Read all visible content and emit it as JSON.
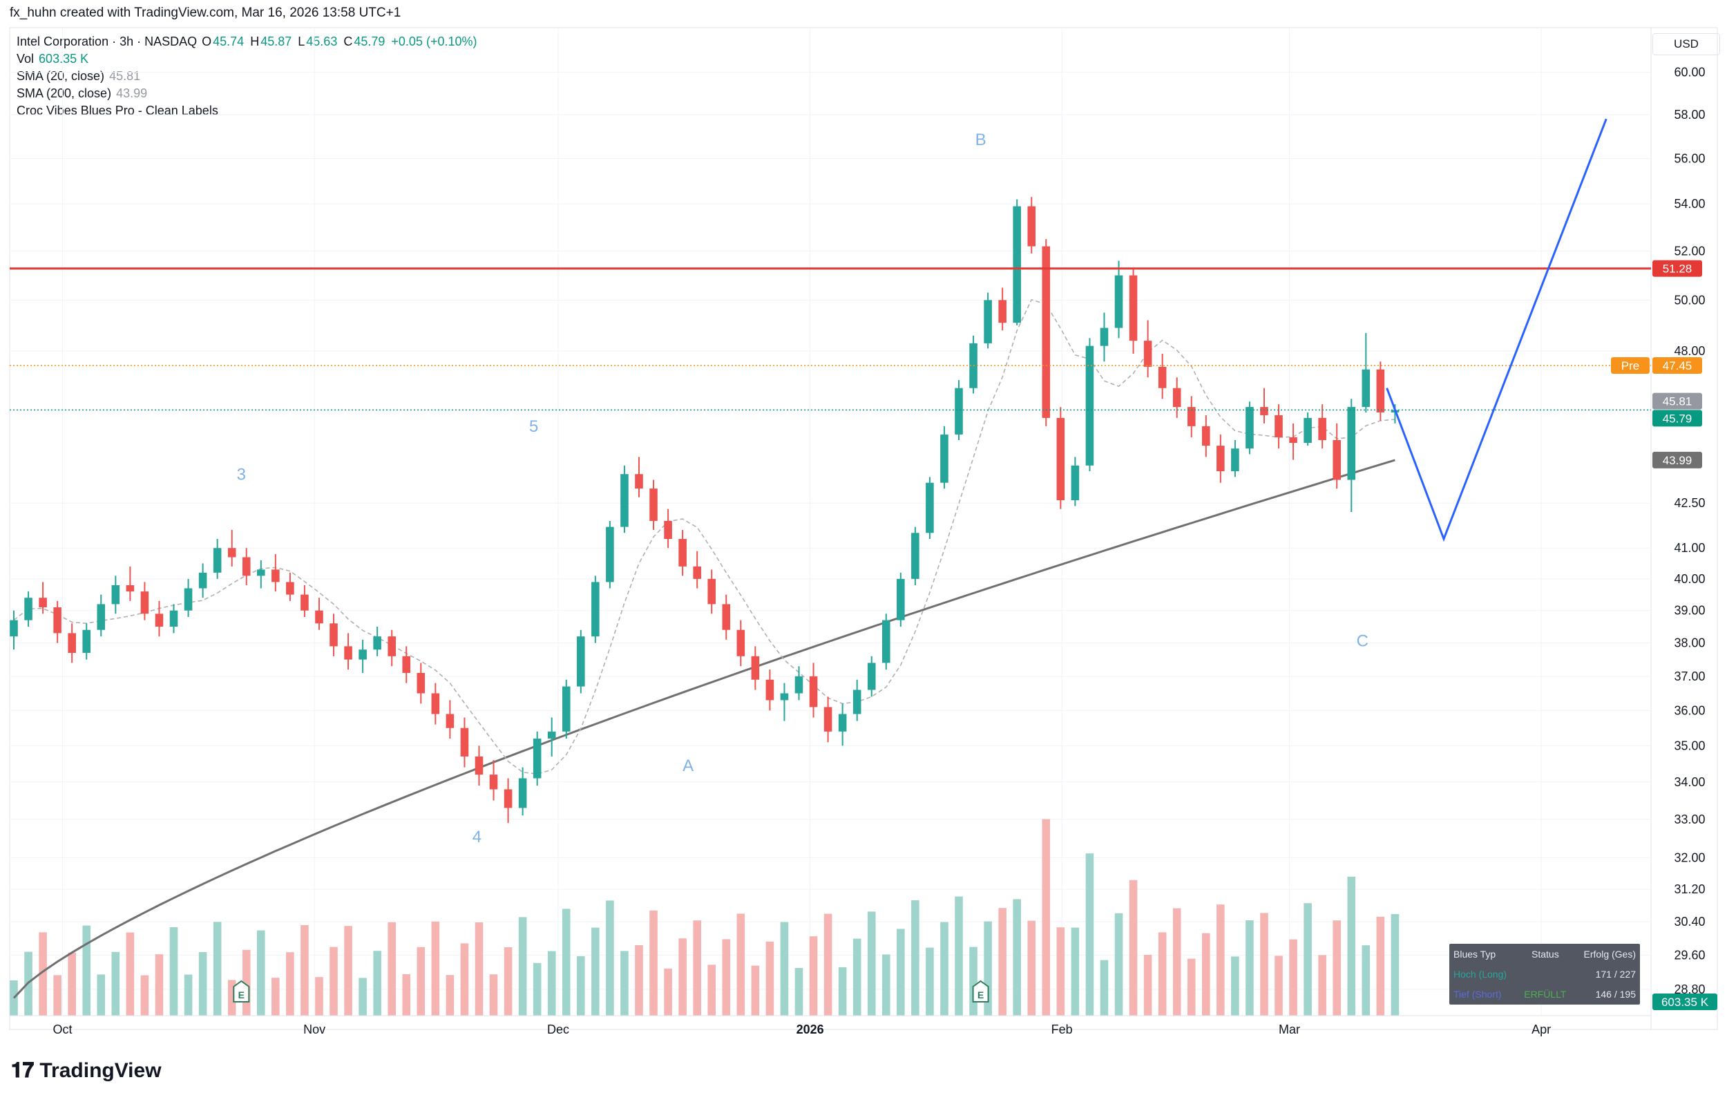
{
  "header": {
    "caption": "fx_huhn created with TradingView.com, Mar 16, 2026 13:58 UTC+1"
  },
  "legend": {
    "symbol": "Intel Corporation · 3h · NASDAQ",
    "ohlc": [
      {
        "k": "O",
        "v": "45.74"
      },
      {
        "k": "H",
        "v": "45.87"
      },
      {
        "k": "L",
        "v": "45.63"
      },
      {
        "k": "C",
        "v": "45.79"
      }
    ],
    "change": "+0.05 (+0.10%)",
    "vol_label": "Vol",
    "vol_value": "603.35 K",
    "sma20_label": "SMA (20, close)",
    "sma20_value": "45.81",
    "sma200_label": "SMA (200, close)",
    "sma200_value": "43.99",
    "indicator": "Croc Vibes Blues Pro - Clean Labels"
  },
  "currency": "USD",
  "colors": {
    "up": "#26a69a",
    "down": "#ef5350",
    "resistance": "#e53935",
    "pre": "#f7931a",
    "sma200": "#707070",
    "sma20": "#b0b0b0",
    "projection": "#2962ff",
    "wave_label": "#7fb2e5"
  },
  "chart_data": {
    "type": "candlestick",
    "title": "Intel Corporation · 3h · NASDAQ",
    "y_axis": {
      "ticks": [
        "60.00",
        "58.00",
        "56.00",
        "54.00",
        "52.00",
        "50.00",
        "48.00",
        "45.81",
        "45.79",
        "43.99",
        "42.50",
        "41.00",
        "40.00",
        "39.00",
        "38.00",
        "37.00",
        "36.00",
        "35.00",
        "34.00",
        "33.00",
        "32.00",
        "31.20",
        "30.40",
        "29.60",
        "28.80"
      ],
      "scale": "log",
      "range": [
        28.2,
        61.5
      ]
    },
    "x_axis": {
      "ticks": [
        "Oct",
        "Nov",
        "Dec",
        "2026",
        "Feb",
        "Mar",
        "Apr"
      ]
    },
    "price_tags": [
      {
        "label": "",
        "value": "51.28",
        "color": "#e53935"
      },
      {
        "label": "Pre",
        "value": "47.45",
        "color": "#f7931a"
      },
      {
        "label": "",
        "value": "45.81",
        "color": "#9598a1"
      },
      {
        "label": "",
        "value": "45.79",
        "color": "#089981"
      },
      {
        "label": "",
        "value": "43.99",
        "color": "#707070"
      }
    ],
    "volume_tag": "603.35 K",
    "resistance_level": 51.28,
    "pre_market_level": 47.45,
    "last_close": 45.79,
    "sma20_last": 45.81,
    "sma200_last": 43.99,
    "wave_labels": [
      {
        "text": "3",
        "time": "2025-10-23",
        "price": 43.3
      },
      {
        "text": "4",
        "time": "2025-11-21",
        "price": 32.4
      },
      {
        "text": "5",
        "time": "2025-11-28",
        "price": 45.0
      },
      {
        "text": "A",
        "time": "2025-12-17",
        "price": 34.3
      },
      {
        "text": "B",
        "time": "2026-01-22",
        "price": 56.6
      },
      {
        "text": "C",
        "time": "2026-03-10",
        "price": 37.9
      }
    ],
    "projection": [
      {
        "time": "2026-03-13",
        "price": 46.6
      },
      {
        "time": "2026-03-20",
        "price": 41.3
      },
      {
        "time": "2026-04-09",
        "price": 57.8
      }
    ],
    "earnings_markers": [
      "2025-10-23",
      "2026-01-22"
    ],
    "stats": {
      "headers": [
        "Blues Typ",
        "Status",
        "Erfolg (Ges)"
      ],
      "rows": [
        {
          "typ": "Hoch (Long)",
          "status": "",
          "erfolg": "171 / 227"
        },
        {
          "typ": "Tief (Short)",
          "status": "ERFÜLLT",
          "erfolg": "146 / 195"
        }
      ]
    },
    "candles": [
      [
        38.2,
        39.0,
        37.8,
        38.7
      ],
      [
        38.7,
        39.6,
        38.5,
        39.4
      ],
      [
        39.4,
        39.9,
        38.9,
        39.1
      ],
      [
        39.1,
        39.3,
        38.0,
        38.3
      ],
      [
        38.3,
        38.6,
        37.4,
        37.7
      ],
      [
        37.7,
        38.6,
        37.5,
        38.4
      ],
      [
        38.4,
        39.5,
        38.2,
        39.2
      ],
      [
        39.2,
        40.1,
        38.9,
        39.8
      ],
      [
        39.8,
        40.4,
        39.3,
        39.6
      ],
      [
        39.6,
        39.9,
        38.7,
        38.9
      ],
      [
        38.9,
        39.3,
        38.2,
        38.5
      ],
      [
        38.5,
        39.2,
        38.3,
        39.0
      ],
      [
        39.0,
        40.0,
        38.8,
        39.7
      ],
      [
        39.7,
        40.5,
        39.4,
        40.2
      ],
      [
        40.2,
        41.3,
        40.0,
        41.0
      ],
      [
        41.0,
        41.6,
        40.4,
        40.7
      ],
      [
        40.7,
        41.0,
        39.8,
        40.1
      ],
      [
        40.1,
        40.6,
        39.7,
        40.3
      ],
      [
        40.3,
        40.8,
        39.6,
        39.9
      ],
      [
        39.9,
        40.2,
        39.3,
        39.5
      ],
      [
        39.5,
        39.8,
        38.8,
        39.0
      ],
      [
        39.0,
        39.4,
        38.4,
        38.6
      ],
      [
        38.6,
        38.9,
        37.6,
        37.9
      ],
      [
        37.9,
        38.3,
        37.2,
        37.5
      ],
      [
        37.5,
        38.1,
        37.1,
        37.8
      ],
      [
        37.8,
        38.5,
        37.6,
        38.2
      ],
      [
        38.2,
        38.4,
        37.3,
        37.6
      ],
      [
        37.6,
        37.9,
        36.8,
        37.1
      ],
      [
        37.1,
        37.4,
        36.2,
        36.5
      ],
      [
        36.5,
        36.8,
        35.6,
        35.9
      ],
      [
        35.9,
        36.3,
        35.2,
        35.5
      ],
      [
        35.5,
        35.8,
        34.4,
        34.7
      ],
      [
        34.7,
        35.0,
        33.9,
        34.2
      ],
      [
        34.2,
        34.6,
        33.5,
        33.8
      ],
      [
        33.8,
        34.1,
        32.9,
        33.3
      ],
      [
        33.3,
        34.4,
        33.1,
        34.1
      ],
      [
        34.1,
        35.4,
        33.9,
        35.2
      ],
      [
        35.2,
        35.8,
        34.7,
        35.4
      ],
      [
        35.4,
        36.9,
        35.2,
        36.7
      ],
      [
        36.7,
        38.4,
        36.5,
        38.2
      ],
      [
        38.2,
        40.1,
        38.0,
        39.9
      ],
      [
        39.9,
        41.9,
        39.7,
        41.7
      ],
      [
        41.7,
        43.8,
        41.5,
        43.5
      ],
      [
        43.5,
        44.1,
        42.7,
        43.0
      ],
      [
        43.0,
        43.3,
        41.6,
        41.9
      ],
      [
        41.9,
        42.3,
        41.0,
        41.3
      ],
      [
        41.3,
        41.6,
        40.1,
        40.4
      ],
      [
        40.4,
        40.9,
        39.7,
        40.0
      ],
      [
        40.0,
        40.3,
        38.9,
        39.2
      ],
      [
        39.2,
        39.5,
        38.1,
        38.4
      ],
      [
        38.4,
        38.7,
        37.3,
        37.6
      ],
      [
        37.6,
        37.9,
        36.6,
        36.9
      ],
      [
        36.9,
        37.2,
        36.0,
        36.3
      ],
      [
        36.3,
        36.8,
        35.7,
        36.5
      ],
      [
        36.5,
        37.3,
        36.3,
        37.0
      ],
      [
        37.0,
        37.4,
        35.8,
        36.1
      ],
      [
        36.1,
        36.4,
        35.1,
        35.4
      ],
      [
        35.4,
        36.2,
        35.0,
        35.9
      ],
      [
        35.9,
        36.9,
        35.7,
        36.6
      ],
      [
        36.6,
        37.6,
        36.4,
        37.4
      ],
      [
        37.4,
        38.9,
        37.2,
        38.7
      ],
      [
        38.7,
        40.2,
        38.5,
        40.0
      ],
      [
        40.0,
        41.7,
        39.8,
        41.5
      ],
      [
        41.5,
        43.4,
        41.3,
        43.2
      ],
      [
        43.2,
        45.2,
        43.0,
        44.9
      ],
      [
        44.9,
        46.9,
        44.7,
        46.6
      ],
      [
        46.6,
        48.6,
        46.4,
        48.3
      ],
      [
        48.3,
        50.3,
        48.1,
        50.0
      ],
      [
        50.0,
        50.5,
        48.8,
        49.1
      ],
      [
        49.1,
        54.2,
        49.0,
        53.9
      ],
      [
        53.9,
        54.3,
        51.9,
        52.2
      ],
      [
        52.2,
        52.5,
        45.2,
        45.5
      ],
      [
        45.5,
        45.9,
        42.3,
        42.6
      ],
      [
        42.6,
        44.1,
        42.4,
        43.8
      ],
      [
        43.8,
        48.5,
        43.6,
        48.2
      ],
      [
        48.2,
        49.5,
        47.6,
        48.9
      ],
      [
        48.9,
        51.6,
        48.5,
        51.0
      ],
      [
        51.0,
        51.3,
        47.9,
        48.4
      ],
      [
        48.4,
        49.2,
        47.0,
        47.4
      ],
      [
        47.4,
        47.9,
        46.2,
        46.6
      ],
      [
        46.6,
        47.0,
        45.5,
        45.9
      ],
      [
        45.9,
        46.3,
        44.8,
        45.2
      ],
      [
        45.2,
        45.6,
        44.1,
        44.5
      ],
      [
        44.5,
        44.9,
        43.2,
        43.6
      ],
      [
        43.6,
        44.7,
        43.4,
        44.4
      ],
      [
        44.4,
        46.1,
        44.2,
        45.9
      ],
      [
        45.9,
        46.6,
        45.3,
        45.6
      ],
      [
        45.6,
        46.0,
        44.4,
        44.8
      ],
      [
        44.8,
        45.3,
        44.0,
        44.6
      ],
      [
        44.6,
        45.7,
        44.5,
        45.5
      ],
      [
        45.5,
        46.0,
        44.4,
        44.7
      ],
      [
        44.7,
        45.3,
        43.0,
        43.3
      ],
      [
        43.3,
        46.2,
        42.2,
        45.9
      ],
      [
        45.9,
        48.7,
        45.7,
        47.3
      ],
      [
        47.3,
        47.6,
        45.4,
        45.7
      ],
      [
        45.7,
        46.0,
        45.3,
        45.79
      ]
    ]
  }
}
